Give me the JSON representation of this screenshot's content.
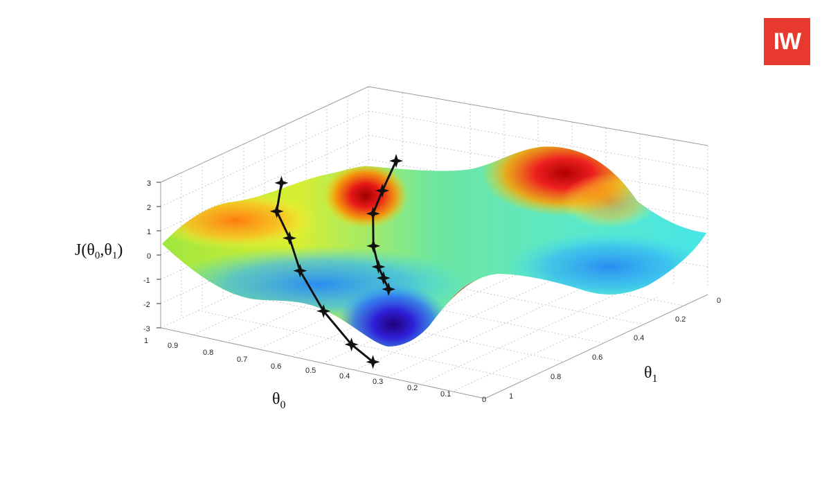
{
  "logo": {
    "text": "IW",
    "color": "#e8392f"
  },
  "chart_data": {
    "type": "surface3d",
    "zlabel": "J(θ0,θ1)",
    "xlabel": "θ0",
    "ylabel": "θ1",
    "z_ticks": [
      "3",
      "2",
      "1",
      "0",
      "-1",
      "-2",
      "-3"
    ],
    "x_ticks": [
      "1",
      "0.9",
      "0.8",
      "0.7",
      "0.6",
      "0.5",
      "0.4",
      "0.3",
      "0.2",
      "0.1",
      "0"
    ],
    "y_ticks": [
      "0",
      "0.2",
      "0.4",
      "0.6",
      "0.8",
      "1"
    ],
    "xlim": [
      0,
      1
    ],
    "ylim": [
      0,
      1
    ],
    "zlim": [
      -3,
      3
    ],
    "colormap": "jet",
    "grid": true,
    "descent_paths": [
      {
        "points": [
          [
            0.7,
            0.62,
            2.1
          ],
          [
            0.66,
            0.5,
            1.5
          ],
          [
            0.62,
            0.4,
            1.1
          ],
          [
            0.55,
            0.3,
            0.4
          ],
          [
            0.5,
            0.25,
            -0.1
          ],
          [
            0.45,
            0.2,
            -0.2
          ],
          [
            0.4,
            0.15,
            -0.3
          ]
        ]
      },
      {
        "points": [
          [
            0.82,
            0.28,
            2.3
          ],
          [
            0.8,
            0.23,
            1.4
          ],
          [
            0.74,
            0.2,
            0.6
          ],
          [
            0.68,
            0.16,
            -0.4
          ],
          [
            0.58,
            0.12,
            -1.6
          ],
          [
            0.48,
            0.1,
            -2.6
          ],
          [
            0.4,
            0.08,
            -3.0
          ]
        ]
      }
    ]
  }
}
